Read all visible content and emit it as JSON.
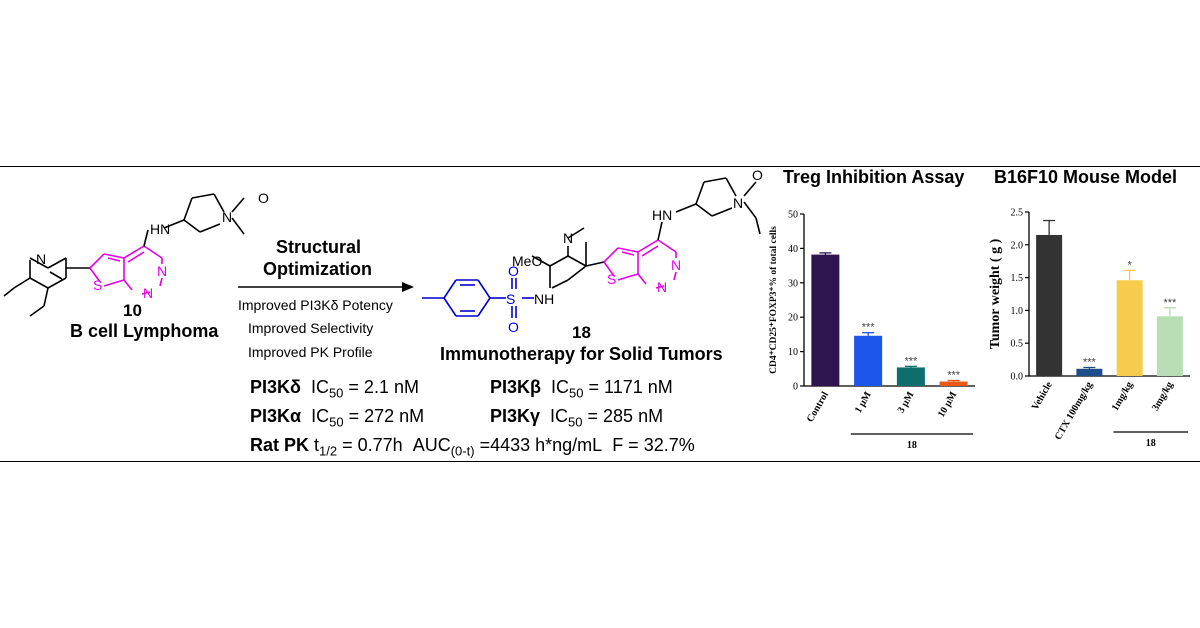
{
  "compound10": {
    "number": "10",
    "indication": "B cell Lymphoma",
    "atoms": {
      "N_pyr": "N",
      "N_pyrrolidine": "N",
      "NH": "HN",
      "S": "S",
      "N1": "N",
      "N2": "N",
      "O": "O"
    }
  },
  "arrow": {
    "title_line1": "Structural",
    "title_line2": "Optimization",
    "improvements": [
      "Improved PI3Kδ Potency",
      "Improved Selectivity",
      "Improved PK Profile"
    ]
  },
  "compound18": {
    "number": "18",
    "indication": "Immunotherapy for Solid Tumors",
    "atoms": {
      "N_pyr": "N",
      "N_pyrrolidine": "N",
      "NH": "HN",
      "S": "S",
      "N1": "N",
      "N2": "N",
      "O": "O",
      "MeO": "MeO",
      "sulfonamide_S": "S",
      "sulfonamide_O1": "O",
      "sulfonamide_O2": "O",
      "NH2": "NH"
    }
  },
  "potency": {
    "delta": {
      "name": "PI3Kδ",
      "ic": "IC",
      "sub": "50",
      "value": " = 2.1  nM"
    },
    "beta": {
      "name": "PI3Kβ",
      "ic": "IC",
      "sub": "50",
      "value": " = 1171 nM"
    },
    "alpha": {
      "name": "PI3Kα",
      "ic": "IC",
      "sub": "50",
      "value": " = 272 nM"
    },
    "gamma": {
      "name": "PI3Kγ",
      "ic": "IC",
      "sub": "50",
      "value": " = 285   nM"
    },
    "pk": {
      "name": "Rat PK",
      "t": "t",
      "t_sub": "1/2",
      "t_value": " = 0.77h",
      "auc": "AUC",
      "auc_sub": "(0-t)",
      "auc_value": " =4433 h*ng/mL",
      "f": "F = 32.7%"
    }
  },
  "colors": {
    "scaffold": "#e600e6",
    "sulfonamide": "#0000cc"
  },
  "chart_data": [
    {
      "type": "bar",
      "title": "Treg Inhibition Assay",
      "ylabel": "CD4⁺CD25⁺FOXP3⁺% of total cells",
      "categories": [
        "Control",
        "1 μM",
        "3 μM",
        "10 μM"
      ],
      "values": [
        38.2,
        14.6,
        5.4,
        1.3
      ],
      "errors": [
        0.5,
        0.9,
        0.3,
        0.3
      ],
      "significance": [
        "",
        "***",
        "***",
        "***"
      ],
      "colors": [
        "#2e1550",
        "#1c55ea",
        "#0d6e6b",
        "#e85a18"
      ],
      "ylim": [
        0,
        50
      ],
      "yticks": [
        "0",
        "10",
        "20",
        "30",
        "40",
        "50"
      ],
      "group_label": "18"
    },
    {
      "type": "bar",
      "title": "B16F10 Mouse Model",
      "ylabel": "Tumor weight ( g )",
      "categories": [
        "Vehicle",
        "CTX 100mg/kg",
        "1mg/kg",
        "3mg/kg"
      ],
      "values": [
        2.15,
        0.11,
        1.46,
        0.91
      ],
      "errors": [
        0.22,
        0.02,
        0.15,
        0.13
      ],
      "significance": [
        "",
        "***",
        "*",
        "***"
      ],
      "colors": [
        "#333333",
        "#1d4e89",
        "#f7cc4d",
        "#b9deb5"
      ],
      "ylim": [
        0,
        2.5
      ],
      "yticks": [
        "0.0",
        "0.5",
        "1.0",
        "1.5",
        "2.0",
        "2.5"
      ],
      "group_label": "18"
    }
  ]
}
